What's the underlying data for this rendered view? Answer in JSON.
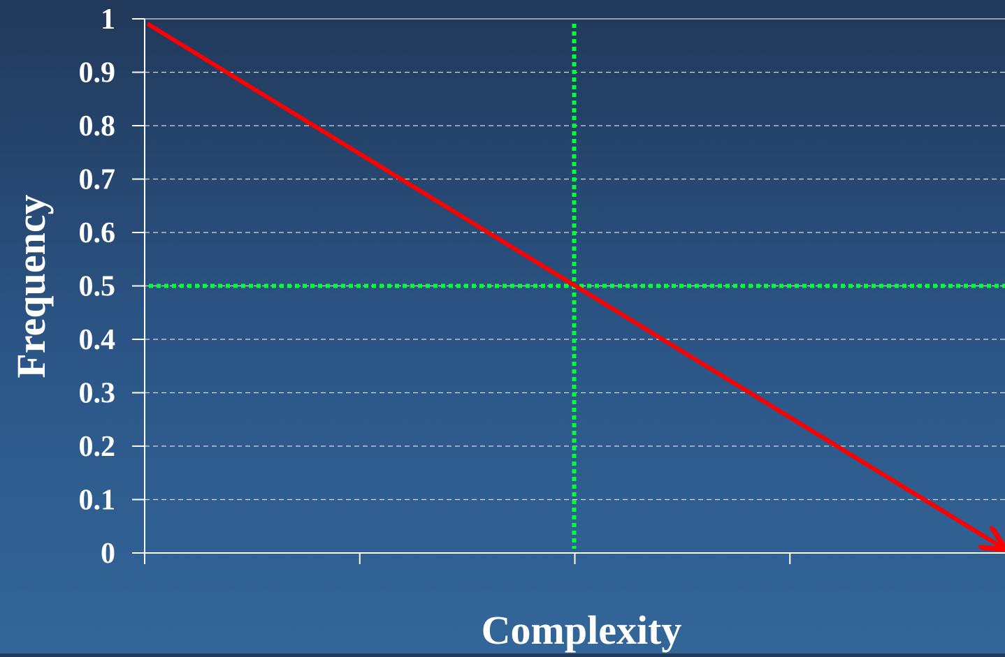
{
  "chart_data": {
    "type": "line",
    "title": "",
    "xlabel": "Complexity",
    "ylabel": "Frequency",
    "ylim": [
      0,
      1
    ],
    "xlim": [
      0,
      1
    ],
    "y_ticks": [
      "0",
      "0.1",
      "0.2",
      "0.3",
      "0.4",
      "0.5",
      "0.6",
      "0.7",
      "0.8",
      "0.9",
      "1"
    ],
    "x_ticks": [
      "",
      "",
      "",
      "",
      ""
    ],
    "grid": true,
    "legend": "none",
    "series": [
      {
        "x": [
          0,
          1
        ],
        "values": [
          1,
          0
        ],
        "color": "#ff0000",
        "style": "solid",
        "arrow_end": true
      }
    ],
    "reference_lines": [
      {
        "orientation": "horizontal",
        "value": 0.5,
        "color": "#00ff33",
        "style": "dotted"
      },
      {
        "orientation": "vertical",
        "value": 0.5,
        "color": "#00ff33",
        "style": "dotted"
      }
    ],
    "colors": {
      "axis": "#ffffff",
      "grid": "#d9d9d9",
      "text": "#ffffff"
    }
  }
}
